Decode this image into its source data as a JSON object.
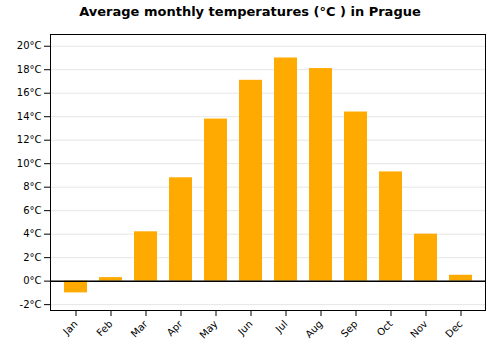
{
  "chart_data": {
    "type": "bar",
    "title": "Average monthly temperatures (°C ) in Prague",
    "categories": [
      "Jan",
      "Feb",
      "Mar",
      "Apr",
      "May",
      "Jun",
      "Jul",
      "Aug",
      "Sep",
      "Oct",
      "Nov",
      "Dec"
    ],
    "values": [
      -1.0,
      0.3,
      4.2,
      8.8,
      13.8,
      17.1,
      19.0,
      18.1,
      14.4,
      9.3,
      4.0,
      0.5
    ],
    "color": "#FFAA00",
    "ylim": [
      -2.5,
      21.0
    ],
    "yticks": [
      {
        "value": -2,
        "label": "-2°C"
      },
      {
        "value": 0,
        "label": "0°C"
      },
      {
        "value": 2,
        "label": "2°C"
      },
      {
        "value": 4,
        "label": "4°C"
      },
      {
        "value": 6,
        "label": "6°C"
      },
      {
        "value": 8,
        "label": "8°C"
      },
      {
        "value": 10,
        "label": "10°C"
      },
      {
        "value": 12,
        "label": "12°C"
      },
      {
        "value": 14,
        "label": "14°C"
      },
      {
        "value": 16,
        "label": "16°C"
      },
      {
        "value": 18,
        "label": "18°C"
      },
      {
        "value": 20,
        "label": "20°C"
      }
    ],
    "grid": true
  }
}
